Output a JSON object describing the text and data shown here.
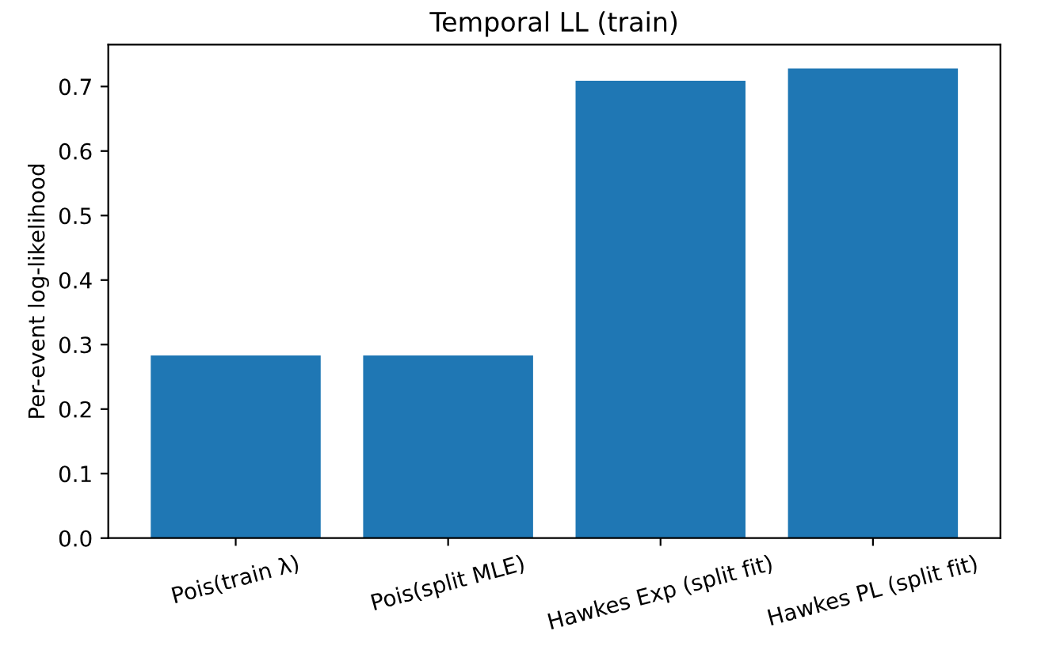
{
  "chart_data": {
    "type": "bar",
    "title": "Temporal LL (train)",
    "ylabel": "Per-event log-likelihood",
    "categories": [
      "Pois(train λ)",
      "Pois(split MLE)",
      "Hawkes Exp (split fit)",
      "Hawkes PL (split fit)"
    ],
    "values": [
      0.283,
      0.283,
      0.709,
      0.728
    ],
    "color": "#1f77b4",
    "ylim": [
      0,
      0.765
    ],
    "yticks": [
      {
        "value": 0,
        "label": "0.0"
      },
      0.1,
      0.2,
      0.3,
      0.4,
      0.5,
      0.6,
      0.7
    ],
    "grid": false,
    "legend": false
  }
}
